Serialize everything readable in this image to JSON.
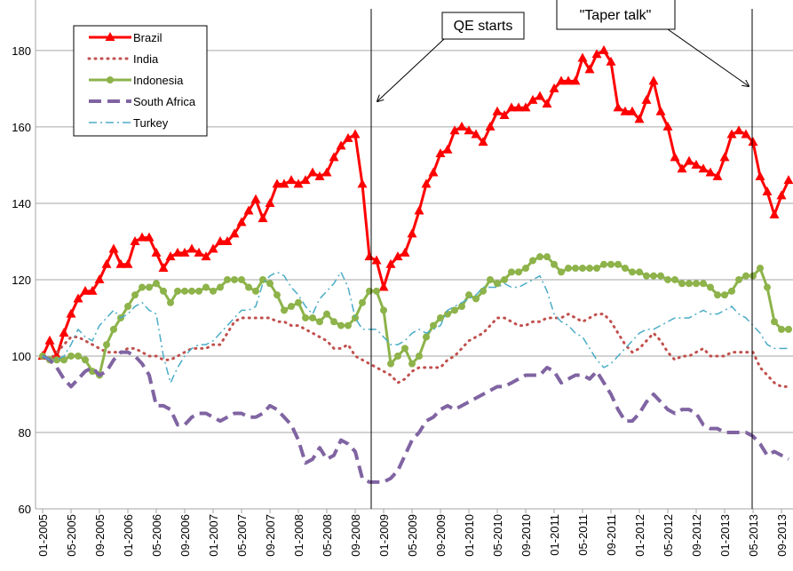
{
  "chart_data": {
    "type": "line",
    "categories": [
      "01-2005",
      null,
      null,
      null,
      "05-2005",
      null,
      null,
      null,
      "09-2005",
      null,
      null,
      null,
      "01-2006",
      null,
      null,
      null,
      "05-2006",
      null,
      null,
      null,
      "09-2006",
      null,
      null,
      null,
      "01-2007",
      null,
      null,
      null,
      "05-2007",
      null,
      null,
      null,
      "09-2007",
      null,
      null,
      null,
      "01-2008",
      null,
      null,
      null,
      "05-2008",
      null,
      null,
      null,
      "09-2008",
      null,
      null,
      null,
      "01-2009",
      null,
      null,
      null,
      "05-2009",
      null,
      null,
      null,
      "09-2009",
      null,
      null,
      null,
      "01-2010",
      null,
      null,
      null,
      "05-2010",
      null,
      null,
      null,
      "09-2010",
      null,
      null,
      null,
      "01-2011",
      null,
      null,
      null,
      "05-2011",
      null,
      null,
      null,
      "09-2011",
      null,
      null,
      null,
      "01-2012",
      null,
      null,
      null,
      "05-2012",
      null,
      null,
      null,
      "09-2012",
      null,
      null,
      null,
      "01-2013",
      null,
      null,
      null,
      "05-2013",
      null,
      null,
      null,
      "09-2013",
      null
    ],
    "series": [
      {
        "name": "Brazil",
        "color": "#ff0000",
        "dash": "solid",
        "marker": "triangle",
        "width": 3,
        "values": [
          100,
          104,
          100,
          106,
          111,
          115,
          117,
          117,
          120,
          124,
          128,
          124,
          124,
          130,
          131,
          131,
          127,
          123,
          126,
          127,
          127,
          128,
          127,
          126,
          128,
          130,
          130,
          132,
          135,
          138,
          141,
          136,
          140,
          145,
          145,
          146,
          145,
          146,
          148,
          147,
          148,
          152,
          155,
          157,
          158,
          145,
          126,
          125,
          118,
          124,
          126,
          127,
          132,
          138,
          145,
          148,
          153,
          154,
          159,
          160,
          159,
          158,
          156,
          160,
          164,
          163,
          165,
          165,
          165,
          167,
          168,
          166,
          170,
          172,
          172,
          172,
          178,
          175,
          179,
          180,
          177,
          165,
          164,
          164,
          162,
          167,
          172,
          164,
          160,
          152,
          149,
          151,
          150,
          149,
          148,
          147,
          152,
          158,
          159,
          158,
          156,
          147,
          143,
          137,
          142,
          146
        ]
      },
      {
        "name": "India",
        "color": "#c0504d",
        "dash": "dotted",
        "marker": "none",
        "width": 3,
        "values": [
          100,
          99,
          101,
          103,
          105,
          105,
          104,
          103,
          102,
          101,
          101,
          101,
          102,
          102,
          101,
          100,
          100,
          99,
          99,
          100,
          101,
          102,
          102,
          102,
          103,
          103,
          106,
          109,
          110,
          110,
          110,
          110,
          110,
          109,
          109,
          108,
          108,
          107,
          106,
          105,
          104,
          102,
          102,
          103,
          100,
          99,
          98,
          97,
          96,
          95,
          93,
          94,
          96,
          97,
          97,
          97,
          97,
          99,
          100,
          102,
          104,
          105,
          106,
          108,
          110,
          110,
          109,
          108,
          108,
          109,
          109,
          110,
          110,
          110,
          111,
          110,
          109,
          110,
          111,
          111,
          109,
          106,
          103,
          101,
          102,
          104,
          106,
          104,
          101,
          99,
          100,
          100,
          101,
          102,
          100,
          100,
          100,
          101,
          101,
          101,
          101,
          97,
          95,
          93,
          92,
          92
        ]
      },
      {
        "name": "Indonesia",
        "color": "#8db34a",
        "dash": "solid",
        "marker": "circle",
        "width": 3,
        "values": [
          100,
          99,
          99,
          99,
          100,
          100,
          99,
          96,
          95,
          103,
          107,
          110,
          113,
          116,
          118,
          118,
          119,
          117,
          114,
          117,
          117,
          117,
          117,
          118,
          117,
          118,
          120,
          120,
          120,
          118,
          117,
          120,
          119,
          116,
          112,
          113,
          114,
          110,
          110,
          109,
          111,
          109,
          108,
          108,
          110,
          114,
          117,
          117,
          112,
          98,
          100,
          102,
          98,
          100,
          105,
          108,
          110,
          111,
          112,
          113,
          116,
          115,
          117,
          120,
          119,
          120,
          122,
          122,
          123,
          125,
          126,
          126,
          124,
          122,
          123,
          123,
          123,
          123,
          123,
          124,
          124,
          124,
          123,
          122,
          122,
          121,
          121,
          121,
          120,
          120,
          119,
          119,
          119,
          119,
          118,
          116,
          116,
          117,
          120,
          121,
          121,
          123,
          118,
          109,
          107,
          107
        ]
      },
      {
        "name": "South Africa",
        "color": "#8064a2",
        "dash": "dashed",
        "marker": "none",
        "width": 4,
        "values": [
          100,
          99,
          97,
          94,
          92,
          94,
          96,
          97,
          95,
          96,
          99,
          101,
          101,
          100,
          98,
          95,
          87,
          87,
          86,
          82,
          82,
          84,
          85,
          85,
          84,
          83,
          84,
          85,
          85,
          84,
          84,
          85,
          87,
          86,
          84,
          82,
          78,
          72,
          73,
          76,
          73,
          74,
          78,
          77,
          75,
          68,
          67,
          67,
          67,
          68,
          70,
          74,
          78,
          80,
          83,
          84,
          86,
          87,
          86,
          87,
          88,
          89,
          90,
          91,
          92,
          92,
          93,
          94,
          95,
          95,
          95,
          97,
          96,
          93,
          94,
          95,
          95,
          94,
          96,
          93,
          90,
          86,
          83,
          83,
          85,
          88,
          90,
          88,
          86,
          85,
          86,
          86,
          85,
          82,
          81,
          81,
          80,
          80,
          80,
          80,
          79,
          77,
          74,
          75,
          74,
          73
        ]
      },
      {
        "name": "Turkey",
        "color": "#4bacc6",
        "dash": "dashdot",
        "marker": "none",
        "width": 1.5,
        "values": [
          100,
          99,
          99,
          100,
          103,
          107,
          105,
          104,
          108,
          110,
          112,
          110,
          111,
          113,
          114,
          112,
          111,
          100,
          93,
          97,
          100,
          102,
          103,
          103,
          104,
          106,
          108,
          110,
          112,
          112,
          113,
          119,
          121,
          122,
          121,
          118,
          116,
          113,
          111,
          115,
          117,
          119,
          122,
          118,
          110,
          107,
          107,
          107,
          105,
          103,
          103,
          104,
          106,
          107,
          106,
          107,
          108,
          112,
          113,
          114,
          115,
          116,
          118,
          118,
          118,
          119,
          118,
          118,
          119,
          120,
          121,
          117,
          111,
          109,
          108,
          106,
          105,
          102,
          99,
          97,
          98,
          100,
          102,
          104,
          106,
          107,
          107,
          108,
          109,
          110,
          110,
          110,
          111,
          112,
          111,
          111,
          112,
          113,
          111,
          110,
          108,
          106,
          103,
          102,
          102,
          102
        ]
      }
    ],
    "ylim": [
      60,
      193
    ],
    "yticks": [
      60,
      80,
      100,
      120,
      140,
      160,
      180
    ],
    "grid": true,
    "legend": "upper left",
    "annotations": [
      "QE starts",
      "\"Taper talk\""
    ]
  }
}
